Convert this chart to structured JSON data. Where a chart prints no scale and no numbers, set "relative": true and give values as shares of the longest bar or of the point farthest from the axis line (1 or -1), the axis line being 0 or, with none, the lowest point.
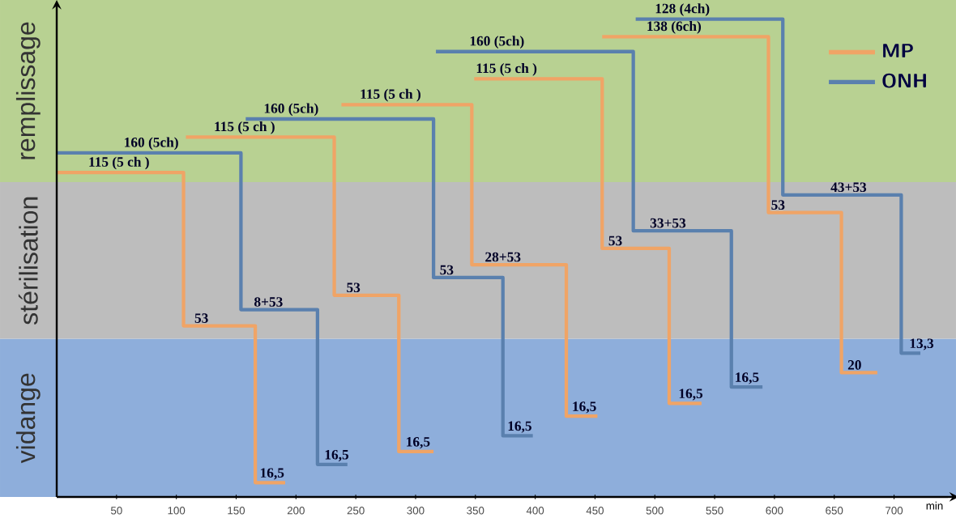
{
  "chart_data": {
    "type": "step",
    "relative": true,
    "xlabel": "min",
    "xlim": [
      0,
      745
    ],
    "xticks": [
      50,
      100,
      150,
      200,
      250,
      300,
      350,
      400,
      450,
      500,
      550,
      600,
      650,
      700
    ],
    "legend": "top right",
    "series": [
      {
        "name": "MP",
        "color": "#f0a466",
        "x": [
          0,
          106,
          166,
          191
        ],
        "values": [
          0.679,
          0.358,
          0.03,
          0.03
        ]
      },
      {
        "color": "#f0a466",
        "x": [
          108,
          232,
          286,
          315
        ],
        "values": [
          0.753,
          0.422,
          0.095,
          0.095
        ]
      },
      {
        "color": "#f0a466",
        "x": [
          238,
          347,
          426,
          452
        ],
        "values": [
          0.821,
          0.486,
          0.169,
          0.169
        ]
      },
      {
        "color": "#f0a466",
        "x": [
          349,
          456,
          512,
          539
        ],
        "values": [
          0.875,
          0.52,
          0.196,
          0.196
        ]
      },
      {
        "color": "#f0a466",
        "x": [
          456,
          595,
          656,
          686
        ],
        "values": [
          0.963,
          0.595,
          0.26,
          0.26
        ]
      },
      {
        "name": "ONH",
        "color": "#5a80ae",
        "x": [
          0,
          154,
          218,
          243
        ],
        "values": [
          0.72,
          0.392,
          0.068,
          0.068
        ]
      },
      {
        "color": "#5a80ae",
        "x": [
          158,
          315,
          373,
          398
        ],
        "values": [
          0.791,
          0.459,
          0.128,
          0.128
        ]
      },
      {
        "color": "#5a80ae",
        "x": [
          317,
          482,
          564,
          590
        ],
        "values": [
          0.932,
          0.557,
          0.23,
          0.23
        ]
      },
      {
        "color": "#5a80ae",
        "x": [
          484,
          607,
          706,
          722
        ],
        "values": [
          1,
          0.632,
          0.301,
          0.301
        ]
      }
    ],
    "bands": [
      {
        "axis": "y",
        "from": 0,
        "to": 0.331,
        "label": "vidange",
        "color": "#8eaedb"
      },
      {
        "axis": "y",
        "from": 0.331,
        "to": 0.659,
        "label": "stérilisation",
        "color": "#bdbdbd"
      },
      {
        "axis": "y",
        "from": 0.659,
        "to": 1.04,
        "label": "remplissage",
        "color": "#b8d192"
      }
    ],
    "annotations": [
      {
        "text": "115 (5 ch )",
        "x": 52,
        "y": 0.679
      },
      {
        "text": "53",
        "x": 121,
        "y": 0.358
      },
      {
        "text": "16,5",
        "x": 180,
        "y": 0.03
      },
      {
        "text": "160 (5ch)",
        "x": 79,
        "y": 0.72
      },
      {
        "text": "8+53",
        "x": 177,
        "y": 0.392
      },
      {
        "text": "16,5",
        "x": 234,
        "y": 0.068
      },
      {
        "text": "115 (5 ch )",
        "x": 157,
        "y": 0.753
      },
      {
        "text": "53",
        "x": 248,
        "y": 0.422
      },
      {
        "text": "16,5",
        "x": 302,
        "y": 0.095
      },
      {
        "text": "160 (5ch)",
        "x": 196,
        "y": 0.791
      },
      {
        "text": "53",
        "x": 326,
        "y": 0.459
      },
      {
        "text": "16,5",
        "x": 387,
        "y": 0.128
      },
      {
        "text": "115 (5 ch )",
        "x": 279,
        "y": 0.821
      },
      {
        "text": "28+53",
        "x": 373,
        "y": 0.486
      },
      {
        "text": "16,5",
        "x": 441,
        "y": 0.169
      },
      {
        "text": "160 (5ch)",
        "x": 368,
        "y": 0.932
      },
      {
        "text": "33+53",
        "x": 511,
        "y": 0.557
      },
      {
        "text": "16,5",
        "x": 577,
        "y": 0.23
      },
      {
        "text": "115 (5 ch )",
        "x": 376,
        "y": 0.875
      },
      {
        "text": "53",
        "x": 467,
        "y": 0.52
      },
      {
        "text": "16,5",
        "x": 530,
        "y": 0.196
      },
      {
        "text": "128 (4ch)",
        "x": 523,
        "y": 1
      },
      {
        "text": "43+53",
        "x": 662,
        "y": 0.632
      },
      {
        "text": "13,3",
        "x": 723,
        "y": 0.301
      },
      {
        "text": "138 (6ch)",
        "x": 516,
        "y": 0.963
      },
      {
        "text": "53",
        "x": 603,
        "y": 0.595
      },
      {
        "text": "20",
        "x": 667,
        "y": 0.26
      }
    ]
  }
}
